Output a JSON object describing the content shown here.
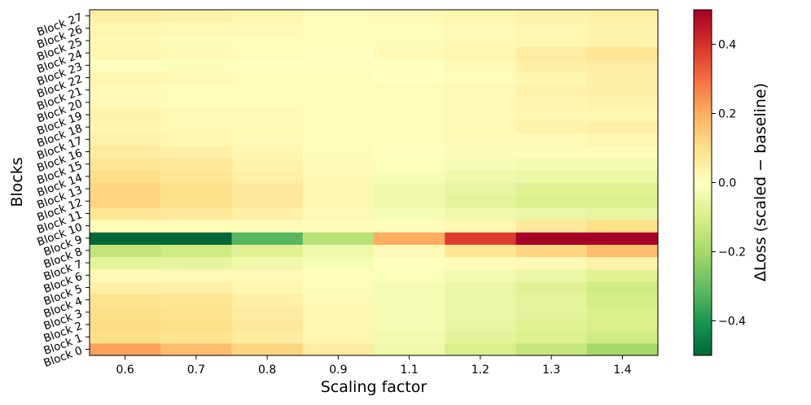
{
  "chart_data": {
    "type": "heatmap",
    "title": "",
    "xlabel": "Scaling factor",
    "ylabel": "Blocks",
    "x_categories": [
      "0.6",
      "0.7",
      "0.8",
      "0.9",
      "1.1",
      "1.2",
      "1.3",
      "1.4"
    ],
    "y_categories": [
      "Block 0",
      "Block 1",
      "Block 2",
      "Block 3",
      "Block 4",
      "Block 5",
      "Block 6",
      "Block 7",
      "Block 8",
      "Block 9",
      "Block 10",
      "Block 11",
      "Block 12",
      "Block 13",
      "Block 14",
      "Block 15",
      "Block 16",
      "Block 17",
      "Block 18",
      "Block 19",
      "Block 20",
      "Block 21",
      "Block 22",
      "Block 23",
      "Block 24",
      "Block 25",
      "Block 26",
      "Block 27"
    ],
    "values": [
      [
        0.22,
        0.17,
        0.12,
        0.06,
        -0.04,
        -0.1,
        -0.14,
        -0.2
      ],
      [
        0.1,
        0.09,
        0.06,
        0.03,
        -0.03,
        -0.07,
        -0.09,
        -0.12
      ],
      [
        0.11,
        0.1,
        0.07,
        0.03,
        -0.02,
        -0.06,
        -0.08,
        -0.1
      ],
      [
        0.1,
        0.09,
        0.06,
        0.03,
        -0.02,
        -0.05,
        -0.07,
        -0.1
      ],
      [
        0.09,
        0.08,
        0.05,
        0.02,
        -0.02,
        -0.05,
        -0.07,
        -0.11
      ],
      [
        0.05,
        0.05,
        0.03,
        0.01,
        -0.02,
        -0.05,
        -0.08,
        -0.12
      ],
      [
        0.02,
        0.02,
        0.02,
        0.01,
        -0.01,
        -0.03,
        -0.05,
        -0.08
      ],
      [
        -0.07,
        -0.06,
        -0.04,
        -0.02,
        0.0,
        0.01,
        0.02,
        0.04
      ],
      [
        -0.15,
        -0.12,
        -0.08,
        -0.04,
        0.02,
        0.08,
        0.12,
        0.17
      ],
      [
        -0.5,
        -0.5,
        -0.32,
        -0.16,
        0.2,
        0.38,
        0.5,
        0.5
      ],
      [
        0.01,
        0.01,
        0.01,
        0.01,
        0.01,
        0.03,
        0.07,
        0.1
      ],
      [
        0.08,
        0.07,
        0.05,
        0.02,
        -0.02,
        -0.04,
        -0.05,
        -0.06
      ],
      [
        0.12,
        0.1,
        0.07,
        0.03,
        -0.04,
        -0.07,
        -0.09,
        -0.09
      ],
      [
        0.12,
        0.1,
        0.07,
        0.03,
        -0.04,
        -0.06,
        -0.08,
        -0.08
      ],
      [
        0.1,
        0.08,
        0.05,
        0.02,
        -0.02,
        -0.04,
        -0.05,
        -0.05
      ],
      [
        0.08,
        0.07,
        0.04,
        0.02,
        -0.01,
        -0.02,
        -0.03,
        -0.03
      ],
      [
        0.06,
        0.05,
        0.03,
        0.01,
        0.0,
        0.01,
        0.01,
        0.01
      ],
      [
        0.04,
        0.03,
        0.02,
        0.01,
        0.01,
        0.02,
        0.02,
        0.03
      ],
      [
        0.03,
        0.02,
        0.02,
        0.01,
        0.01,
        0.02,
        0.04,
        0.05
      ],
      [
        0.04,
        0.02,
        0.02,
        0.01,
        0.01,
        0.02,
        0.03,
        0.03
      ],
      [
        0.02,
        0.01,
        0.01,
        0.01,
        0.01,
        0.02,
        0.03,
        0.04
      ],
      [
        0.02,
        0.01,
        0.01,
        0.01,
        0.01,
        0.02,
        0.04,
        0.05
      ],
      [
        0.03,
        0.02,
        0.01,
        0.01,
        0.0,
        0.01,
        0.03,
        0.05
      ],
      [
        0.0,
        -0.01,
        0.0,
        0.0,
        0.0,
        0.02,
        0.05,
        0.06
      ],
      [
        0.03,
        0.02,
        0.01,
        0.0,
        0.02,
        0.03,
        0.06,
        0.08
      ],
      [
        0.02,
        0.01,
        0.01,
        0.01,
        0.01,
        0.02,
        0.03,
        0.04
      ],
      [
        0.03,
        0.02,
        0.02,
        0.01,
        0.01,
        0.02,
        0.03,
        0.04
      ],
      [
        0.05,
        0.04,
        0.03,
        0.01,
        0.02,
        0.03,
        0.04,
        0.05
      ]
    ],
    "colorbar": {
      "label": "ΔLoss (scaled − baseline)",
      "vmin": -0.5,
      "vmax": 0.5,
      "ticks": [
        -0.4,
        -0.2,
        0.0,
        0.2,
        0.4
      ],
      "tick_labels": [
        "−0.4",
        "−0.2",
        "0.0",
        "0.2",
        "0.4"
      ],
      "colormap": "RdYlGn_r",
      "colors": [
        "#006837",
        "#1a9850",
        "#66bd63",
        "#a6d96a",
        "#d9ef8b",
        "#ffffbf",
        "#fee08b",
        "#fdae61",
        "#f46d43",
        "#d73027",
        "#a50026"
      ]
    }
  }
}
